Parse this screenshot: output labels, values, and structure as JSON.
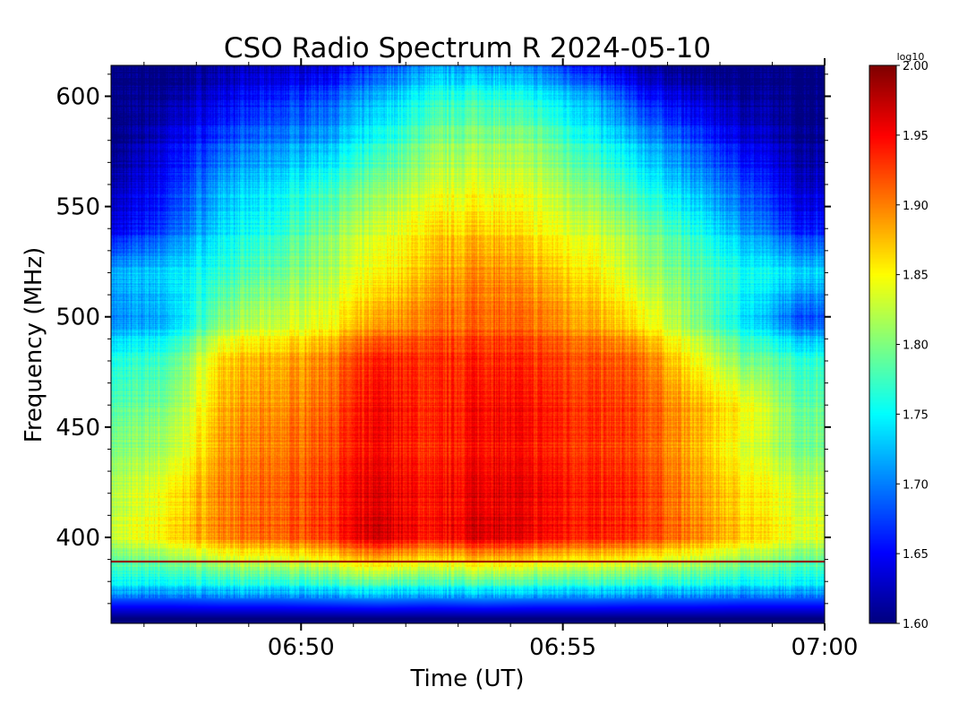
{
  "chart_data": {
    "type": "heatmap",
    "title": "CSO Radio Spectrum R 2024-05-10",
    "xlabel": "Time (UT)",
    "ylabel": "Frequency (MHz)",
    "colorbar_label": "log10",
    "colormap": "jet",
    "xlim_minutes": [
      46.37,
      60.0
    ],
    "ylim": [
      361,
      614
    ],
    "clim": [
      1.6,
      2.0
    ],
    "x_ticks": [
      {
        "minute": 50,
        "label": "06:50"
      },
      {
        "minute": 55,
        "label": "06:55"
      },
      {
        "minute": 60,
        "label": "07:00"
      }
    ],
    "y_ticks": [
      {
        "value": 400,
        "label": "400"
      },
      {
        "value": 450,
        "label": "450"
      },
      {
        "value": 500,
        "label": "500"
      },
      {
        "value": 550,
        "label": "550"
      },
      {
        "value": 600,
        "label": "600"
      }
    ],
    "colorbar_ticks": [
      {
        "value": 1.6,
        "label": "1.60"
      },
      {
        "value": 1.65,
        "label": "1.65"
      },
      {
        "value": 1.7,
        "label": "1.70"
      },
      {
        "value": 1.75,
        "label": "1.75"
      },
      {
        "value": 1.8,
        "label": "1.80"
      },
      {
        "value": 1.85,
        "label": "1.85"
      },
      {
        "value": 1.9,
        "label": "1.90"
      },
      {
        "value": 1.95,
        "label": "1.95"
      },
      {
        "value": 2.0,
        "label": "2.00"
      }
    ],
    "time_minutes": [
      46.5,
      47.5,
      48.5,
      49.5,
      50.5,
      51.5,
      52.5,
      53.5,
      54.5,
      55.5,
      56.5,
      57.5,
      58.5,
      59.5
    ],
    "frequencies_mhz": [
      363,
      378,
      400,
      420,
      440,
      460,
      480,
      500,
      520,
      540,
      560,
      580,
      600,
      612
    ],
    "values": [
      [
        1.6,
        1.6,
        1.6,
        1.6,
        1.6,
        1.6,
        1.6,
        1.6,
        1.6,
        1.6,
        1.6,
        1.6,
        1.6,
        1.6
      ],
      [
        1.74,
        1.74,
        1.75,
        1.75,
        1.76,
        1.77,
        1.76,
        1.77,
        1.76,
        1.76,
        1.75,
        1.75,
        1.74,
        1.74
      ],
      [
        1.83,
        1.86,
        1.9,
        1.91,
        1.93,
        1.97,
        1.94,
        1.97,
        1.95,
        1.94,
        1.93,
        1.9,
        1.87,
        1.84
      ],
      [
        1.82,
        1.85,
        1.9,
        1.91,
        1.93,
        1.96,
        1.94,
        1.96,
        1.95,
        1.94,
        1.93,
        1.89,
        1.86,
        1.83
      ],
      [
        1.8,
        1.82,
        1.89,
        1.9,
        1.92,
        1.95,
        1.93,
        1.95,
        1.94,
        1.93,
        1.92,
        1.88,
        1.84,
        1.8
      ],
      [
        1.78,
        1.8,
        1.88,
        1.89,
        1.91,
        1.95,
        1.93,
        1.95,
        1.94,
        1.93,
        1.92,
        1.88,
        1.85,
        1.79
      ],
      [
        1.76,
        1.78,
        1.87,
        1.88,
        1.9,
        1.94,
        1.93,
        1.94,
        1.93,
        1.92,
        1.91,
        1.85,
        1.8,
        1.77
      ],
      [
        1.7,
        1.72,
        1.8,
        1.82,
        1.84,
        1.88,
        1.9,
        1.91,
        1.9,
        1.88,
        1.85,
        1.8,
        1.74,
        1.68
      ],
      [
        1.72,
        1.74,
        1.77,
        1.79,
        1.82,
        1.85,
        1.88,
        1.9,
        1.88,
        1.86,
        1.82,
        1.79,
        1.76,
        1.74
      ],
      [
        1.64,
        1.68,
        1.74,
        1.76,
        1.8,
        1.83,
        1.86,
        1.87,
        1.85,
        1.83,
        1.8,
        1.76,
        1.71,
        1.66
      ],
      [
        1.62,
        1.66,
        1.72,
        1.74,
        1.77,
        1.8,
        1.83,
        1.84,
        1.83,
        1.8,
        1.76,
        1.72,
        1.68,
        1.63
      ],
      [
        1.6,
        1.64,
        1.68,
        1.7,
        1.72,
        1.76,
        1.8,
        1.81,
        1.8,
        1.76,
        1.72,
        1.68,
        1.64,
        1.61
      ],
      [
        1.6,
        1.61,
        1.64,
        1.66,
        1.68,
        1.72,
        1.76,
        1.77,
        1.75,
        1.72,
        1.66,
        1.63,
        1.61,
        1.6
      ],
      [
        1.6,
        1.6,
        1.62,
        1.63,
        1.64,
        1.68,
        1.72,
        1.72,
        1.7,
        1.66,
        1.62,
        1.6,
        1.6,
        1.6
      ]
    ],
    "reference_line_mhz": 389,
    "reference_line_color": "#8b0000"
  }
}
